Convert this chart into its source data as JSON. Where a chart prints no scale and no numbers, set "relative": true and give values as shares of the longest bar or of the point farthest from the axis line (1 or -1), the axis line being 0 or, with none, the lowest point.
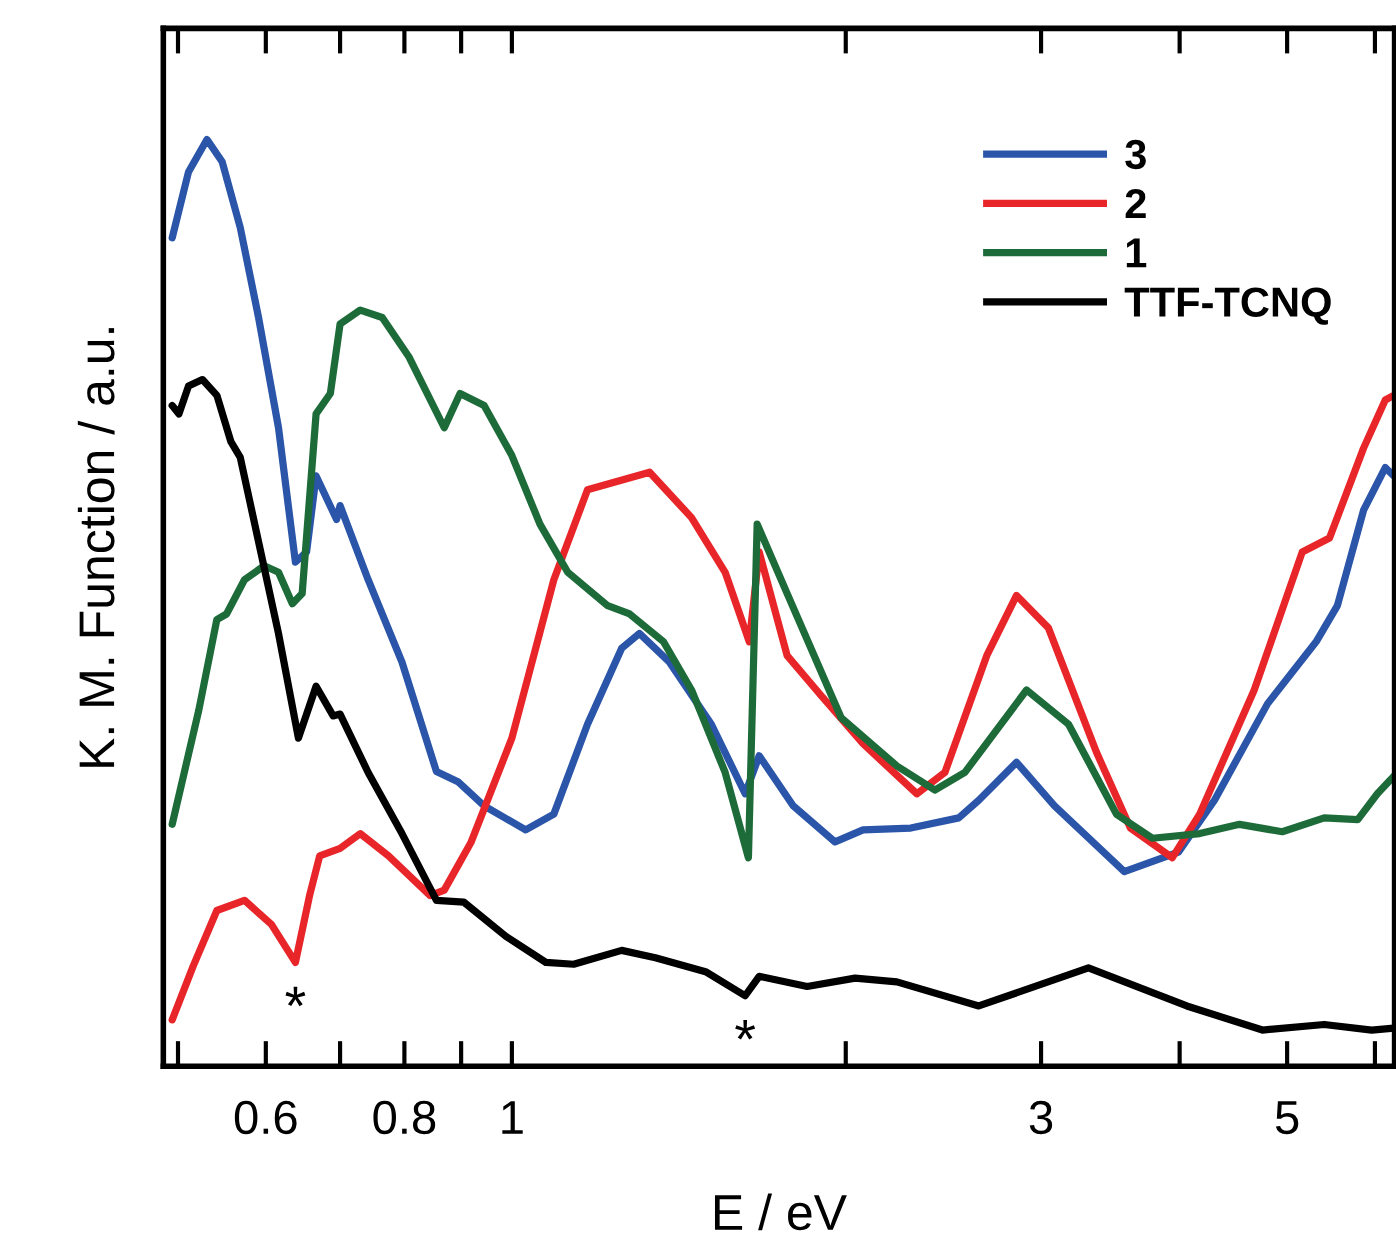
{
  "chart_data": {
    "type": "line",
    "relative": true,
    "xlabel": "E / eV",
    "ylabel": "K. M. Function / a.u.",
    "log": "x",
    "xlim": [
      0.485,
      6.25
    ],
    "xticks": [
      {
        "value": 0.5,
        "label": null
      },
      0.6,
      {
        "value": 0.7,
        "label": null
      },
      0.8,
      {
        "value": 0.9,
        "label": null
      },
      1,
      {
        "value": 2,
        "label": null
      },
      3,
      {
        "value": 4,
        "label": null
      },
      5,
      {
        "value": 6,
        "label": null
      }
    ],
    "tick_labels": "x",
    "grid": false,
    "legend": "top right",
    "marker": "none",
    "line_style": "solid",
    "series": [
      {
        "name": "3",
        "color": "#2a55a8",
        "x": [
          0.494,
          0.511,
          0.531,
          0.548,
          0.569,
          0.591,
          0.616,
          0.638,
          0.653,
          0.666,
          0.695,
          0.7,
          0.742,
          0.796,
          0.855,
          0.894,
          0.944,
          1.029,
          1.091,
          1.17,
          1.256,
          1.303,
          1.387,
          1.513,
          1.623,
          1.671,
          1.793,
          1.956,
          2.073,
          2.289,
          2.529,
          2.636,
          2.851,
          3.085,
          3.566,
          3.99,
          4.3,
          4.8,
          5.31,
          5.55,
          5.86,
          6.13,
          6.24
        ],
        "values": [
          0.894,
          0.965,
          1.0,
          0.976,
          0.905,
          0.808,
          0.689,
          0.544,
          0.555,
          0.637,
          0.59,
          0.605,
          0.525,
          0.436,
          0.318,
          0.307,
          0.281,
          0.255,
          0.272,
          0.369,
          0.451,
          0.467,
          0.436,
          0.369,
          0.294,
          0.335,
          0.281,
          0.242,
          0.255,
          0.257,
          0.268,
          0.287,
          0.328,
          0.281,
          0.21,
          0.231,
          0.287,
          0.391,
          0.458,
          0.497,
          0.6,
          0.646,
          0.637
        ]
      },
      {
        "name": "2",
        "color": "#e8262a",
        "x": [
          0.494,
          0.516,
          0.542,
          0.574,
          0.607,
          0.638,
          0.657,
          0.671,
          0.7,
          0.73,
          0.774,
          0.844,
          0.869,
          0.919,
          1.0,
          1.091,
          1.17,
          1.331,
          1.452,
          1.557,
          1.637,
          1.671,
          1.771,
          1.9,
          2.073,
          2.318,
          2.457,
          2.68,
          2.851,
          3.046,
          3.365,
          3.611,
          3.94,
          4.17,
          4.67,
          5.16,
          5.46,
          5.86,
          6.13,
          6.24
        ],
        "values": [
          0.05,
          0.108,
          0.168,
          0.179,
          0.153,
          0.112,
          0.184,
          0.227,
          0.235,
          0.251,
          0.227,
          0.184,
          0.19,
          0.242,
          0.354,
          0.525,
          0.622,
          0.641,
          0.592,
          0.533,
          0.458,
          0.555,
          0.443,
          0.4,
          0.348,
          0.294,
          0.317,
          0.443,
          0.508,
          0.473,
          0.339,
          0.257,
          0.225,
          0.272,
          0.406,
          0.555,
          0.57,
          0.667,
          0.719,
          0.724
        ]
      },
      {
        "name": "1",
        "color": "#1e6b3a",
        "x": [
          0.494,
          0.522,
          0.542,
          0.553,
          0.574,
          0.598,
          0.616,
          0.634,
          0.647,
          0.666,
          0.686,
          0.7,
          0.73,
          0.764,
          0.808,
          0.869,
          0.898,
          0.944,
          1.0,
          1.06,
          1.123,
          1.22,
          1.277,
          1.37,
          1.452,
          1.557,
          1.634,
          1.664,
          1.771,
          1.981,
          2.224,
          2.406,
          2.561,
          2.911,
          3.176,
          3.508,
          3.78,
          4.17,
          4.53,
          4.95,
          5.4,
          5.79,
          6.03,
          6.24
        ],
        "values": [
          0.261,
          0.384,
          0.482,
          0.488,
          0.525,
          0.54,
          0.533,
          0.499,
          0.51,
          0.704,
          0.726,
          0.801,
          0.816,
          0.808,
          0.765,
          0.689,
          0.726,
          0.713,
          0.659,
          0.585,
          0.533,
          0.497,
          0.488,
          0.458,
          0.406,
          0.317,
          0.225,
          0.585,
          0.51,
          0.376,
          0.324,
          0.298,
          0.317,
          0.406,
          0.369,
          0.272,
          0.246,
          0.251,
          0.261,
          0.253,
          0.268,
          0.266,
          0.294,
          0.313
        ]
      },
      {
        "name": "TTF-TCNQ",
        "color": "#000000",
        "x": [
          0.494,
          0.501,
          0.511,
          0.526,
          0.542,
          0.558,
          0.569,
          0.59,
          0.616,
          0.642,
          0.666,
          0.69,
          0.7,
          0.742,
          0.796,
          0.855,
          0.905,
          0.988,
          1.073,
          1.137,
          1.256,
          1.347,
          1.495,
          1.623,
          1.671,
          1.846,
          2.039,
          2.224,
          2.636,
          3.31,
          4.06,
          4.75,
          5.4,
          5.96,
          6.24
        ],
        "values": [
          0.713,
          0.704,
          0.734,
          0.741,
          0.724,
          0.674,
          0.657,
          0.57,
          0.467,
          0.354,
          0.41,
          0.378,
          0.38,
          0.317,
          0.251,
          0.179,
          0.177,
          0.14,
          0.112,
          0.11,
          0.125,
          0.117,
          0.102,
          0.076,
          0.097,
          0.086,
          0.095,
          0.091,
          0.065,
          0.106,
          0.065,
          0.039,
          0.045,
          0.039,
          0.041
        ]
      }
    ],
    "annotations": [
      {
        "text": "*",
        "x": 0.638,
        "y": 0.112
      },
      {
        "text": "*",
        "x": 1.623,
        "y": 0.076
      }
    ]
  }
}
